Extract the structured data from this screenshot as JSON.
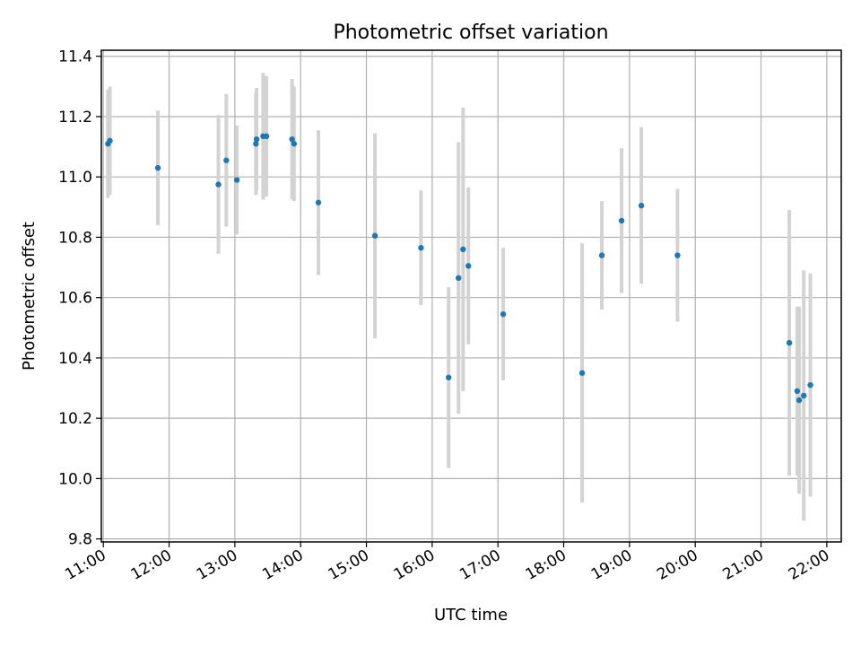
{
  "chart_data": {
    "type": "scatter",
    "title": "Photometric offset variation",
    "xlabel": "UTC time",
    "ylabel": "Photometric offset",
    "x_unit": "hours UTC (decimal)",
    "xlim": [
      10.97,
      22.22
    ],
    "ylim": [
      9.79,
      11.42
    ],
    "xticks": [
      {
        "value": 11,
        "label": "11:00"
      },
      {
        "value": 12,
        "label": "12:00"
      },
      {
        "value": 13,
        "label": "13:00"
      },
      {
        "value": 14,
        "label": "14:00"
      },
      {
        "value": 15,
        "label": "15:00"
      },
      {
        "value": 16,
        "label": "16:00"
      },
      {
        "value": 17,
        "label": "17:00"
      },
      {
        "value": 18,
        "label": "18:00"
      },
      {
        "value": 19,
        "label": "19:00"
      },
      {
        "value": 20,
        "label": "20:00"
      },
      {
        "value": 21,
        "label": "21:00"
      },
      {
        "value": 22,
        "label": "22:00"
      }
    ],
    "yticks": [
      {
        "value": 9.8,
        "label": "9.8"
      },
      {
        "value": 10.0,
        "label": "10.0"
      },
      {
        "value": 10.2,
        "label": "10.2"
      },
      {
        "value": 10.4,
        "label": "10.4"
      },
      {
        "value": 10.6,
        "label": "10.6"
      },
      {
        "value": 10.8,
        "label": "10.8"
      },
      {
        "value": 11.0,
        "label": "11.0"
      },
      {
        "value": 11.2,
        "label": "11.2"
      },
      {
        "value": 11.4,
        "label": "11.4"
      }
    ],
    "grid": true,
    "colors": {
      "point": "#1f77b4",
      "errorbar": "#d3d3d3",
      "grid": "#b0b0b0"
    },
    "points": [
      {
        "x": 11.07,
        "y": 11.11,
        "err": 0.18
      },
      {
        "x": 11.1,
        "y": 11.12,
        "err": 0.18
      },
      {
        "x": 11.83,
        "y": 11.03,
        "err": 0.19
      },
      {
        "x": 12.75,
        "y": 10.975,
        "err": 0.23
      },
      {
        "x": 12.87,
        "y": 11.055,
        "err": 0.22
      },
      {
        "x": 13.03,
        "y": 10.99,
        "err": 0.18
      },
      {
        "x": 13.32,
        "y": 11.11,
        "err": 0.17
      },
      {
        "x": 13.33,
        "y": 11.125,
        "err": 0.17
      },
      {
        "x": 13.43,
        "y": 11.135,
        "err": 0.21
      },
      {
        "x": 13.48,
        "y": 11.135,
        "err": 0.2
      },
      {
        "x": 13.87,
        "y": 11.125,
        "err": 0.2
      },
      {
        "x": 13.9,
        "y": 11.11,
        "err": 0.19
      },
      {
        "x": 14.27,
        "y": 10.915,
        "err": 0.24
      },
      {
        "x": 15.13,
        "y": 10.805,
        "err": 0.34
      },
      {
        "x": 15.83,
        "y": 10.765,
        "err": 0.19
      },
      {
        "x": 16.25,
        "y": 10.335,
        "err": 0.3
      },
      {
        "x": 16.4,
        "y": 10.665,
        "err": 0.45
      },
      {
        "x": 16.47,
        "y": 10.76,
        "err": 0.47
      },
      {
        "x": 16.55,
        "y": 10.705,
        "err": 0.26
      },
      {
        "x": 17.08,
        "y": 10.545,
        "err": 0.22
      },
      {
        "x": 18.28,
        "y": 10.35,
        "err": 0.43
      },
      {
        "x": 18.58,
        "y": 10.74,
        "err": 0.18
      },
      {
        "x": 18.88,
        "y": 10.855,
        "err": 0.24
      },
      {
        "x": 19.18,
        "y": 10.905,
        "err": 0.26
      },
      {
        "x": 19.73,
        "y": 10.74,
        "err": 0.22
      },
      {
        "x": 21.43,
        "y": 10.45,
        "err": 0.44
      },
      {
        "x": 21.55,
        "y": 10.29,
        "err": 0.28
      },
      {
        "x": 21.58,
        "y": 10.26,
        "err": 0.31
      },
      {
        "x": 21.65,
        "y": 10.275,
        "err": 0.415
      },
      {
        "x": 21.75,
        "y": 10.31,
        "err": 0.37
      }
    ]
  }
}
